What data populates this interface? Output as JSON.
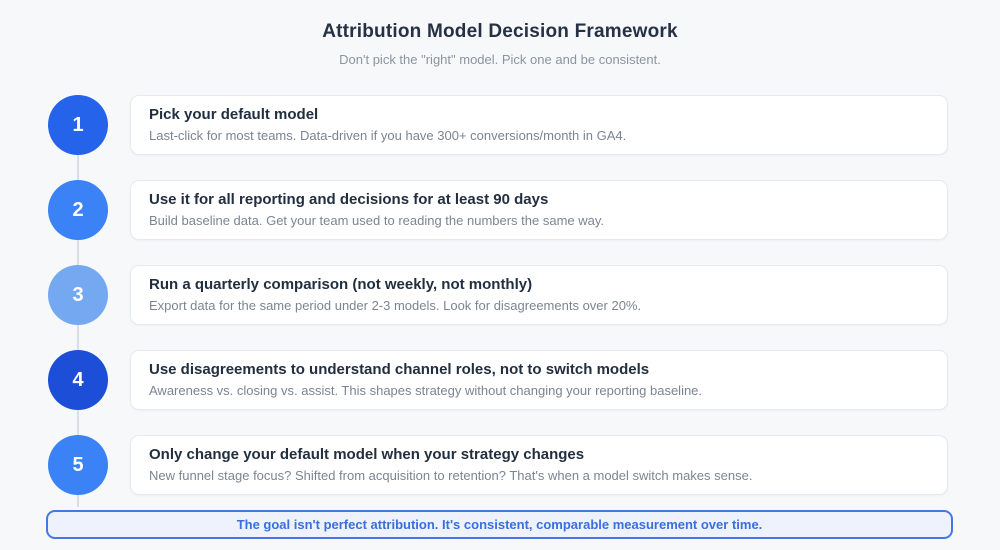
{
  "header": {
    "title": "Attribution Model Decision Framework",
    "subtitle": "Don't pick the \"right\" model. Pick one and be consistent."
  },
  "steps": [
    {
      "number": "1",
      "title": "Pick your default model",
      "description": "Last-click for most teams. Data-driven if you have 300+ conversions/month in GA4.",
      "circle_color": "#2563eb"
    },
    {
      "number": "2",
      "title": "Use it for all reporting and decisions for at least 90 days",
      "description": "Build baseline data. Get your team used to reading the numbers the same way.",
      "circle_color": "#3b82f6"
    },
    {
      "number": "3",
      "title": "Run a quarterly comparison (not weekly, not monthly)",
      "description": "Export data for the same period under 2-3 models. Look for disagreements over 20%.",
      "circle_color": "#74a9f2"
    },
    {
      "number": "4",
      "title": "Use disagreements to understand channel roles, not to switch models",
      "description": "Awareness vs. closing vs. assist. This shapes strategy without changing your reporting baseline.",
      "circle_color": "#1d4ed8"
    },
    {
      "number": "5",
      "title": "Only change your default model when your strategy changes",
      "description": "New funnel stage focus? Shifted from acquisition to retention? That's when a model switch makes sense.",
      "circle_color": "#3b82f6"
    }
  ],
  "footer": {
    "note": "The goal isn't perfect attribution. It's consistent, comparable measurement over time."
  },
  "colors": {
    "page_background": "#f6f8fa",
    "card_background": "#ffffff",
    "card_border": "#e7e9ee",
    "title_text": "#263244",
    "subtitle_text": "#8b94a0",
    "connector_line": "#d9dfe6",
    "footer_border": "#4478e4",
    "footer_background": "#edf2fc",
    "footer_text": "#3a6fe0"
  }
}
